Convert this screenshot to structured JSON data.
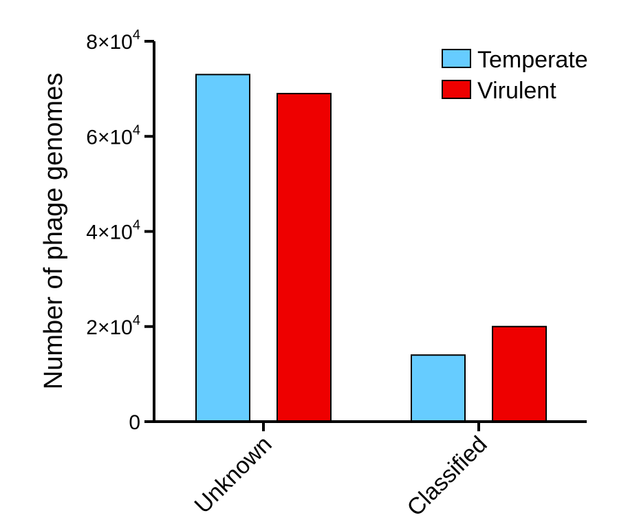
{
  "chart_data": {
    "type": "bar",
    "categories": [
      "Unknown",
      "Classified"
    ],
    "series": [
      {
        "name": "Temperate",
        "color": "#66ccff",
        "values": [
          73000,
          14000
        ]
      },
      {
        "name": "Virulent",
        "color": "#ee0000",
        "values": [
          69000,
          20000
        ]
      }
    ],
    "ylabel": "Number of phage genomes",
    "xlabel": "",
    "ylim": [
      0,
      80000
    ],
    "yticks": [
      {
        "value": 0,
        "mantissa": "0",
        "times": "",
        "base": "",
        "exp": ""
      },
      {
        "value": 20000,
        "mantissa": "2",
        "times": "×",
        "base": "10",
        "exp": "4"
      },
      {
        "value": 40000,
        "mantissa": "4",
        "times": "×",
        "base": "10",
        "exp": "4"
      },
      {
        "value": 60000,
        "mantissa": "6",
        "times": "×",
        "base": "10",
        "exp": "4"
      },
      {
        "value": 80000,
        "mantissa": "8",
        "times": "×",
        "base": "10",
        "exp": "4"
      }
    ],
    "grid": false,
    "legend_position": "top-right"
  }
}
